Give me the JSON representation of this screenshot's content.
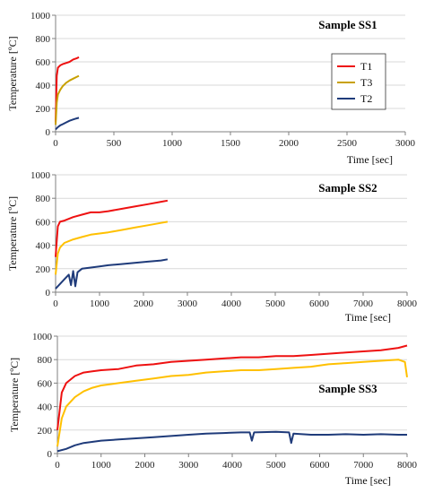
{
  "colors": {
    "T1": "#ee1111",
    "T3_panel1": "#c8a000",
    "T3": "#ffc000",
    "T2": "#1f3b7a",
    "axis": "#808080",
    "grid": "#d9d9d9"
  },
  "chart_data": [
    {
      "type": "line",
      "title": "Sample SS1",
      "xlabel": "Time  [sec]",
      "ylabel": "Temperature  [ºC]",
      "xlim": [
        0,
        3000
      ],
      "ylim": [
        0,
        1000
      ],
      "xticks": [
        0,
        500,
        1000,
        1500,
        2000,
        2500,
        3000
      ],
      "yticks": [
        0,
        200,
        400,
        600,
        800,
        1000
      ],
      "grid": true,
      "legend": {
        "position": "right",
        "entries": [
          "T1",
          "T3",
          "T2"
        ]
      },
      "series": [
        {
          "name": "T1",
          "x": [
            0,
            10,
            20,
            40,
            60,
            90,
            120,
            150,
            180,
            200
          ],
          "y": [
            80,
            480,
            550,
            570,
            580,
            590,
            600,
            620,
            630,
            640
          ]
        },
        {
          "name": "T3",
          "x": [
            0,
            10,
            20,
            40,
            60,
            90,
            120,
            150,
            180,
            200
          ],
          "y": [
            60,
            250,
            320,
            360,
            390,
            420,
            440,
            455,
            470,
            480
          ]
        },
        {
          "name": "T2",
          "x": [
            0,
            20,
            40,
            60,
            90,
            120,
            150,
            180,
            200
          ],
          "y": [
            20,
            40,
            55,
            65,
            80,
            95,
            105,
            115,
            120
          ]
        }
      ]
    },
    {
      "type": "line",
      "title": "Sample SS2",
      "xlabel": "Time  [sec]",
      "ylabel": "Temperature  [ºC]",
      "xlim": [
        0,
        8000
      ],
      "ylim": [
        0,
        1000
      ],
      "xticks": [
        0,
        1000,
        2000,
        3000,
        4000,
        5000,
        6000,
        7000,
        8000
      ],
      "yticks": [
        0,
        200,
        400,
        600,
        800,
        1000
      ],
      "grid": true,
      "series": [
        {
          "name": "T1",
          "x": [
            0,
            50,
            100,
            200,
            400,
            600,
            800,
            1000,
            1200,
            1500,
            1800,
            2100,
            2400,
            2550
          ],
          "y": [
            300,
            560,
            600,
            610,
            640,
            660,
            680,
            680,
            690,
            710,
            730,
            750,
            770,
            780
          ]
        },
        {
          "name": "T3",
          "x": [
            0,
            50,
            100,
            200,
            400,
            600,
            800,
            1000,
            1200,
            1500,
            1800,
            2100,
            2400,
            2550
          ],
          "y": [
            150,
            330,
            380,
            420,
            450,
            470,
            490,
            500,
            510,
            530,
            550,
            570,
            590,
            600
          ]
        },
        {
          "name": "T2",
          "x": [
            0,
            100,
            200,
            300,
            350,
            400,
            450,
            500,
            600,
            800,
            1000,
            1200,
            1500,
            1800,
            2100,
            2400,
            2550
          ],
          "y": [
            30,
            70,
            110,
            150,
            60,
            180,
            50,
            170,
            200,
            210,
            220,
            230,
            240,
            250,
            260,
            270,
            280
          ]
        }
      ]
    },
    {
      "type": "line",
      "title": "Sample SS3",
      "xlabel": "Time  [sec]",
      "ylabel": "Temperature  [ºC]",
      "xlim": [
        0,
        8000
      ],
      "ylim": [
        0,
        1000
      ],
      "xticks": [
        0,
        1000,
        2000,
        3000,
        4000,
        5000,
        6000,
        7000,
        8000
      ],
      "yticks": [
        0,
        200,
        400,
        600,
        800,
        1000
      ],
      "grid": true,
      "series": [
        {
          "name": "T1",
          "x": [
            0,
            100,
            200,
            400,
            600,
            800,
            1000,
            1400,
            1800,
            2200,
            2600,
            3000,
            3400,
            3800,
            4200,
            4600,
            5000,
            5400,
            5800,
            6200,
            6600,
            7000,
            7400,
            7800,
            8000
          ],
          "y": [
            200,
            520,
            600,
            660,
            690,
            700,
            710,
            720,
            750,
            760,
            780,
            790,
            800,
            810,
            820,
            820,
            830,
            830,
            840,
            850,
            860,
            870,
            880,
            900,
            920
          ]
        },
        {
          "name": "T3",
          "x": [
            0,
            100,
            200,
            400,
            600,
            800,
            1000,
            1400,
            1800,
            2200,
            2600,
            3000,
            3400,
            3800,
            4200,
            4600,
            5000,
            5400,
            5800,
            6200,
            6600,
            7000,
            7400,
            7800,
            7950,
            8000
          ],
          "y": [
            60,
            300,
            400,
            480,
            530,
            560,
            580,
            600,
            620,
            640,
            660,
            670,
            690,
            700,
            710,
            710,
            720,
            730,
            740,
            760,
            770,
            780,
            790,
            800,
            780,
            650
          ]
        },
        {
          "name": "T2",
          "x": [
            0,
            200,
            400,
            600,
            1000,
            1400,
            1800,
            2200,
            2600,
            3000,
            3400,
            3800,
            4200,
            4400,
            4450,
            4500,
            5000,
            5300,
            5350,
            5400,
            5800,
            6200,
            6600,
            7000,
            7400,
            7800,
            8000
          ],
          "y": [
            20,
            40,
            70,
            90,
            110,
            120,
            130,
            140,
            150,
            160,
            170,
            175,
            180,
            180,
            110,
            180,
            185,
            180,
            90,
            170,
            160,
            160,
            165,
            160,
            165,
            160,
            160
          ]
        }
      ]
    }
  ]
}
